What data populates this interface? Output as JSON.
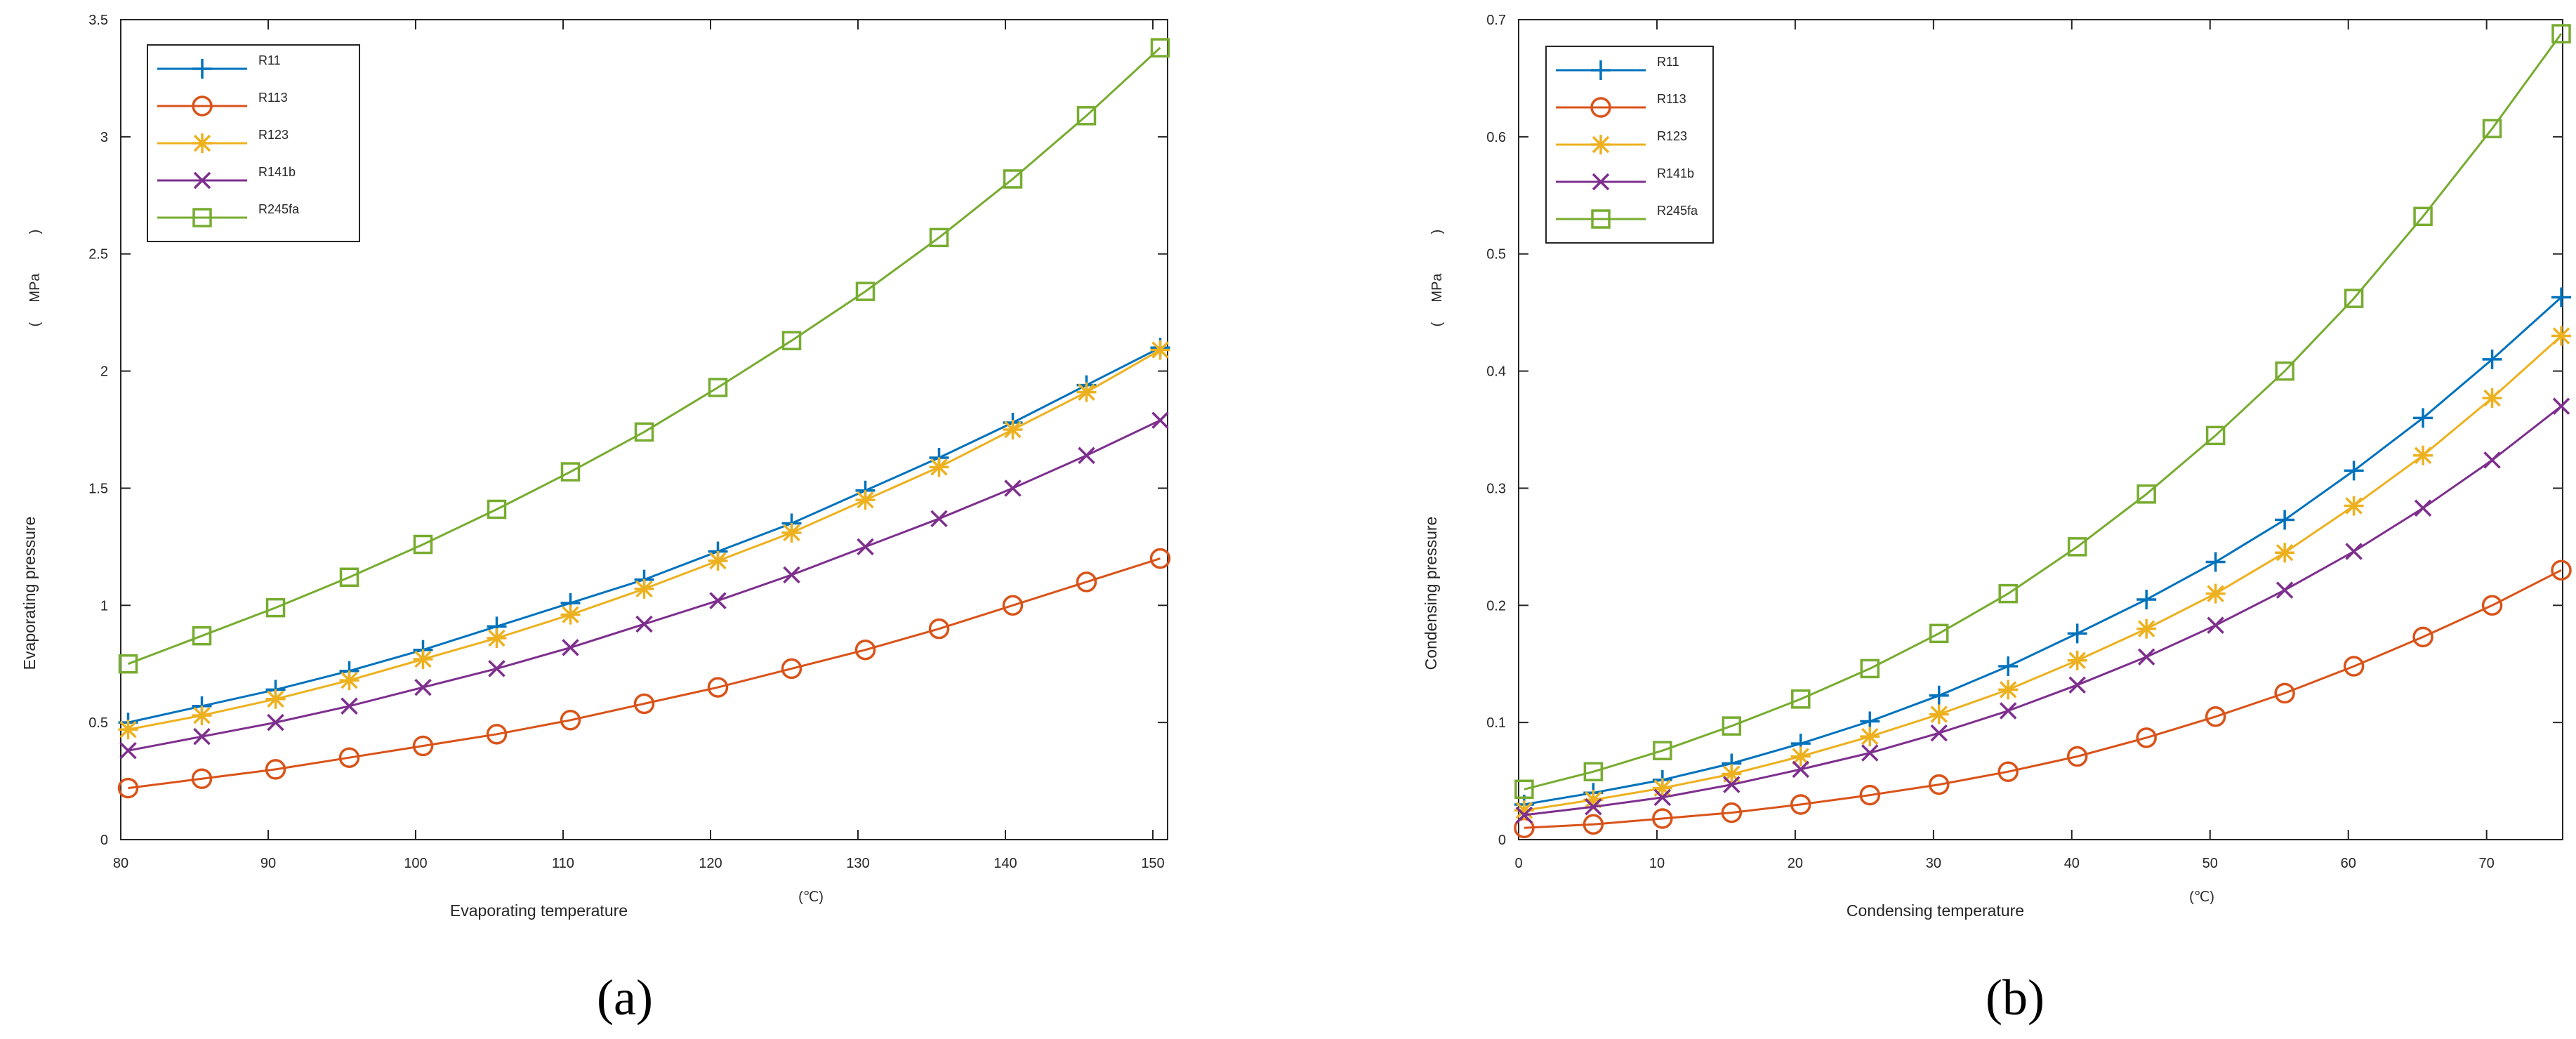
{
  "figure": {
    "panels": [
      "(a)",
      "(b)"
    ]
  },
  "chart_data": [
    {
      "type": "line",
      "panel_label": "(a)",
      "xlabel": "Evaporating temperature",
      "x_unit": "(℃)",
      "ylabel": "Evaporating pressure",
      "y_unit": [
        "(",
        "MPa",
        ")"
      ],
      "xlim": [
        80,
        151
      ],
      "ylim": [
        0,
        3.5
      ],
      "x_ticks": [
        80,
        90,
        100,
        110,
        120,
        130,
        140,
        150
      ],
      "x_tick_labels": [
        "80",
        "90",
        "100",
        "110",
        "120",
        "130",
        "140",
        "150"
      ],
      "y_ticks": [
        0,
        0.5,
        1,
        1.5,
        2,
        2.5,
        3,
        3.5
      ],
      "y_tick_labels": [
        "0",
        "0.5",
        "1",
        "1.5",
        "2",
        "2.5",
        "3",
        "3.5"
      ],
      "legend_position": "top-left",
      "x": [
        80.5,
        85.5,
        90.5,
        95.5,
        100.5,
        105.5,
        110.5,
        115.5,
        120.5,
        125.5,
        130.5,
        135.5,
        140.5,
        145.5,
        150.5
      ],
      "series": [
        {
          "name": "R11",
          "color": "#0072BD",
          "marker": "plus",
          "values": [
            0.5,
            0.57,
            0.64,
            0.72,
            0.81,
            0.91,
            1.01,
            1.11,
            1.23,
            1.35,
            1.49,
            1.63,
            1.78,
            1.94,
            2.1
          ]
        },
        {
          "name": "R113",
          "color": "#D95319",
          "marker": "circle",
          "values": [
            0.22,
            0.26,
            0.3,
            0.35,
            0.4,
            0.45,
            0.51,
            0.58,
            0.65,
            0.73,
            0.81,
            0.9,
            1.0,
            1.1,
            1.2
          ]
        },
        {
          "name": "R123",
          "color": "#EDB120",
          "marker": "star",
          "values": [
            0.47,
            0.53,
            0.6,
            0.68,
            0.77,
            0.86,
            0.96,
            1.07,
            1.19,
            1.31,
            1.45,
            1.59,
            1.75,
            1.91,
            2.09
          ]
        },
        {
          "name": "R141b",
          "color": "#7E2F8E",
          "marker": "x",
          "values": [
            0.38,
            0.44,
            0.5,
            0.57,
            0.65,
            0.73,
            0.82,
            0.92,
            1.02,
            1.13,
            1.25,
            1.37,
            1.5,
            1.64,
            1.79
          ]
        },
        {
          "name": "R245fa",
          "color": "#77AC30",
          "marker": "square",
          "values": [
            0.75,
            0.87,
            0.99,
            1.12,
            1.26,
            1.41,
            1.57,
            1.74,
            1.93,
            2.13,
            2.34,
            2.57,
            2.82,
            3.09,
            3.38
          ]
        }
      ]
    },
    {
      "type": "line",
      "panel_label": "(b)",
      "xlabel": "Condensing temperature",
      "x_unit": "(℃)",
      "ylabel": "Condensing pressure",
      "y_unit": [
        "(",
        "MPa",
        ")"
      ],
      "xlim": [
        0,
        75.5
      ],
      "ylim": [
        0,
        0.7
      ],
      "x_ticks": [
        0,
        10,
        20,
        30,
        40,
        50,
        60,
        70
      ],
      "x_tick_labels": [
        "0",
        "10",
        "20",
        "30",
        "40",
        "50",
        "60",
        "70"
      ],
      "y_ticks": [
        0,
        0.1,
        0.2,
        0.3,
        0.4,
        0.5,
        0.6,
        0.7
      ],
      "y_tick_labels": [
        "0",
        "0.1",
        "0.2",
        "0.3",
        "0.4",
        "0.5",
        "0.6",
        "0.7"
      ],
      "legend_position": "top-left",
      "x": [
        0.4,
        5.4,
        10.4,
        15.4,
        20.4,
        25.4,
        30.4,
        35.4,
        40.4,
        45.4,
        50.4,
        55.4,
        60.4,
        65.4,
        70.4,
        75.4
      ],
      "series": [
        {
          "name": "R11",
          "color": "#0072BD",
          "marker": "plus",
          "values": [
            0.03,
            0.04,
            0.051,
            0.065,
            0.082,
            0.101,
            0.123,
            0.148,
            0.176,
            0.205,
            0.237,
            0.273,
            0.315,
            0.36,
            0.41,
            0.463
          ]
        },
        {
          "name": "R113",
          "color": "#D95319",
          "marker": "circle",
          "values": [
            0.01,
            0.013,
            0.018,
            0.023,
            0.03,
            0.038,
            0.047,
            0.058,
            0.071,
            0.087,
            0.105,
            0.125,
            0.148,
            0.173,
            0.2,
            0.23
          ]
        },
        {
          "name": "R123",
          "color": "#EDB120",
          "marker": "star",
          "values": [
            0.025,
            0.034,
            0.044,
            0.056,
            0.071,
            0.088,
            0.107,
            0.128,
            0.153,
            0.18,
            0.21,
            0.245,
            0.285,
            0.328,
            0.377,
            0.43
          ]
        },
        {
          "name": "R141b",
          "color": "#7E2F8E",
          "marker": "x",
          "values": [
            0.021,
            0.028,
            0.036,
            0.047,
            0.06,
            0.074,
            0.091,
            0.11,
            0.132,
            0.156,
            0.183,
            0.213,
            0.246,
            0.283,
            0.324,
            0.37
          ]
        },
        {
          "name": "R245fa",
          "color": "#77AC30",
          "marker": "square",
          "values": [
            0.043,
            0.058,
            0.076,
            0.097,
            0.12,
            0.146,
            0.176,
            0.21,
            0.25,
            0.295,
            0.345,
            0.4,
            0.462,
            0.532,
            0.607,
            0.688
          ]
        }
      ]
    }
  ]
}
